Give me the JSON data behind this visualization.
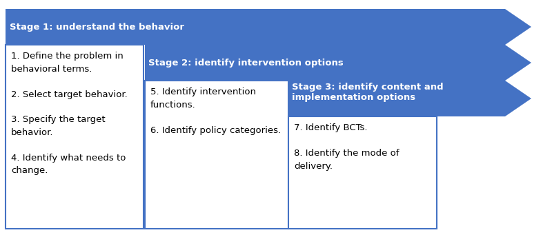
{
  "bg_color": "#ffffff",
  "arrow_color": "#4472c4",
  "box_border_color": "#4472c4",
  "box_fill_color": "#ffffff",
  "header_text_color": "#ffffff",
  "body_text_color": "#000000",
  "stages": [
    {
      "header": "Stage 1: understand the behavior",
      "body": "1. Define the problem in\nbehavioral terms.\n\n2. Select target behavior.\n\n3. Specify the target\nbehavior.\n\n4. Identify what needs to\nchange."
    },
    {
      "header": "Stage 2: identify intervention options",
      "body": "5. Identify intervention\nfunctions.\n\n6. Identify policy categories."
    },
    {
      "header": "Stage 3: identify content and\nimplementation options",
      "body": "7. Identify BCTs.\n\n8. Identify the mode of\ndelivery."
    }
  ],
  "header_font_size": 9.5,
  "body_font_size": 9.5,
  "fig_width": 8.0,
  "fig_height": 3.6,
  "dpi": 100
}
